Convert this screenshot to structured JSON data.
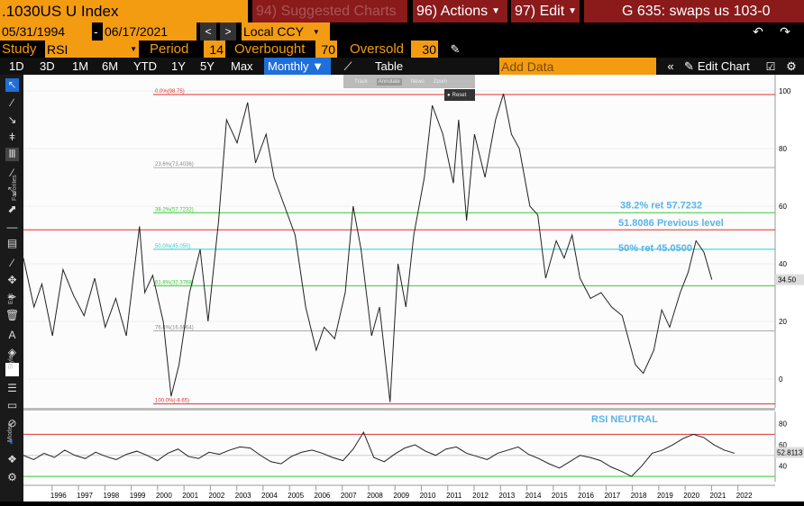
{
  "header": {
    "ticker": ".1030US U Index",
    "suggested": "94) Suggested Charts",
    "actions": "96) Actions",
    "edit": "97) Edit",
    "page_title": "G 635: swaps us 103-0"
  },
  "dates": {
    "start": "05/31/1994",
    "end": "06/17/2021",
    "sep": "-",
    "prev": "<",
    "next": ">",
    "currency": "Local CCY"
  },
  "study": {
    "label": "Study",
    "value": "RSI",
    "period_label": "Period",
    "period": "14",
    "ob_label": "Overbought",
    "ob": "70",
    "os_label": "Oversold",
    "os": "30"
  },
  "ranges": [
    "1D",
    "3D",
    "1M",
    "6M",
    "YTD",
    "1Y",
    "5Y",
    "Max"
  ],
  "freq": "Monthly ▼",
  "table_label": "Table",
  "add_data_placeholder": "Add Data",
  "edit_chart": "Edit Chart",
  "mini_toolbar": {
    "track": "Track",
    "annotate": "Annotate",
    "news": "News",
    "zoom": "Zoom",
    "reset": "Reset"
  },
  "side_labels": {
    "favorites": "Favorites",
    "edit": "Edit",
    "style": "Style",
    "modes": "Modes"
  },
  "chart_data": {
    "type": "line",
    "x_years": [
      "1996",
      "1997",
      "1998",
      "1999",
      "2000",
      "2001",
      "2002",
      "2003",
      "2004",
      "2005",
      "2006",
      "2007",
      "2008",
      "2009",
      "2010",
      "2011",
      "2012",
      "2013",
      "2014",
      "2015",
      "2016",
      "2017",
      "2018",
      "2019",
      "2020",
      "2021",
      "2022"
    ],
    "y_ticks": [
      "100",
      "80",
      "60",
      "40",
      "20",
      "0"
    ],
    "ylim": [
      -10,
      105
    ],
    "last_value": "34.50",
    "fib_levels": [
      {
        "label": "0.0%(98.75)",
        "value": 98.75,
        "color": "#e03030"
      },
      {
        "label": "23.6%(73.4036)",
        "value": 73.4,
        "color": "#aaaaaa"
      },
      {
        "label": "38.2%(57.7232)",
        "value": 57.72,
        "color": "#33cc33"
      },
      {
        "label": "50.0%(45.050)",
        "value": 45.05,
        "color": "#33cccc"
      },
      {
        "label": "61.8%(32.3768)",
        "value": 32.38,
        "color": "#33cc33"
      },
      {
        "label": "76.4%(16.6964)",
        "value": 16.7,
        "color": "#aaaaaa"
      },
      {
        "label": "100.0%(-8.65)",
        "value": -8.65,
        "color": "#e03030"
      }
    ],
    "prev_level": {
      "value": 51.81,
      "color": "#e03030"
    },
    "annotations": [
      "38.2% ret 57.7232",
      "51.8086 Previous level",
      "50% ret 45.0500"
    ],
    "series": [
      {
        "values": [
          [
            1994.4,
            42
          ],
          [
            1994.8,
            25
          ],
          [
            1995.1,
            33
          ],
          [
            1995.5,
            15
          ],
          [
            1995.9,
            38
          ],
          [
            1996.3,
            29
          ],
          [
            1996.7,
            22
          ],
          [
            1997.1,
            35
          ],
          [
            1997.5,
            18
          ],
          [
            1997.9,
            28
          ],
          [
            1998.3,
            15
          ],
          [
            1998.8,
            53
          ],
          [
            1999.0,
            30
          ],
          [
            1999.3,
            36
          ],
          [
            1999.7,
            20
          ],
          [
            2000.0,
            -6
          ],
          [
            2000.3,
            5
          ],
          [
            2000.7,
            30
          ],
          [
            2001.1,
            45
          ],
          [
            2001.4,
            20
          ],
          [
            2001.8,
            55
          ],
          [
            2002.1,
            90
          ],
          [
            2002.5,
            82
          ],
          [
            2002.9,
            96
          ],
          [
            2003.2,
            75
          ],
          [
            2003.6,
            85
          ],
          [
            2003.9,
            70
          ],
          [
            2004.3,
            60
          ],
          [
            2004.7,
            50
          ],
          [
            2005.1,
            25
          ],
          [
            2005.5,
            10
          ],
          [
            2005.8,
            18
          ],
          [
            2006.2,
            14
          ],
          [
            2006.6,
            30
          ],
          [
            2006.9,
            60
          ],
          [
            2007.2,
            45
          ],
          [
            2007.6,
            15
          ],
          [
            2007.9,
            25
          ],
          [
            2008.3,
            -8
          ],
          [
            2008.6,
            40
          ],
          [
            2008.9,
            25
          ],
          [
            2009.2,
            50
          ],
          [
            2009.6,
            70
          ],
          [
            2009.9,
            95
          ],
          [
            2010.3,
            85
          ],
          [
            2010.7,
            68
          ],
          [
            2010.9,
            90
          ],
          [
            2011.2,
            55
          ],
          [
            2011.5,
            85
          ],
          [
            2011.9,
            70
          ],
          [
            2012.3,
            90
          ],
          [
            2012.6,
            99
          ],
          [
            2012.9,
            85
          ],
          [
            2013.2,
            80
          ],
          [
            2013.6,
            60
          ],
          [
            2013.9,
            57
          ],
          [
            2014.2,
            35
          ],
          [
            2014.6,
            48
          ],
          [
            2014.9,
            42
          ],
          [
            2015.2,
            50
          ],
          [
            2015.5,
            35
          ],
          [
            2015.9,
            28
          ],
          [
            2016.3,
            30
          ],
          [
            2016.7,
            25
          ],
          [
            2017.1,
            22
          ],
          [
            2017.6,
            5
          ],
          [
            2017.9,
            2
          ],
          [
            2018.3,
            10
          ],
          [
            2018.6,
            24
          ],
          [
            2018.9,
            18
          ],
          [
            2019.3,
            30
          ],
          [
            2019.6,
            37
          ],
          [
            2019.9,
            48
          ],
          [
            2020.2,
            44
          ],
          [
            2020.5,
            34.5
          ]
        ]
      }
    ]
  },
  "rsi_panel": {
    "title": "RSI NEUTRAL",
    "ticks": [
      "80",
      "60",
      "40"
    ],
    "last": "52.8113",
    "values": [
      50,
      46,
      52,
      48,
      55,
      50,
      47,
      53,
      49,
      46,
      51,
      54,
      50,
      45,
      52,
      56,
      49,
      47,
      53,
      51,
      55,
      58,
      57,
      50,
      44,
      42,
      49,
      53,
      55,
      52,
      48,
      45,
      56,
      72,
      48,
      44,
      51,
      57,
      60,
      54,
      50,
      56,
      58,
      52,
      49,
      46,
      52,
      55,
      58,
      51,
      47,
      42,
      38,
      44,
      50,
      48,
      45,
      39,
      35,
      30,
      40,
      52,
      55,
      60,
      66,
      70,
      67,
      60,
      55,
      52
    ]
  }
}
